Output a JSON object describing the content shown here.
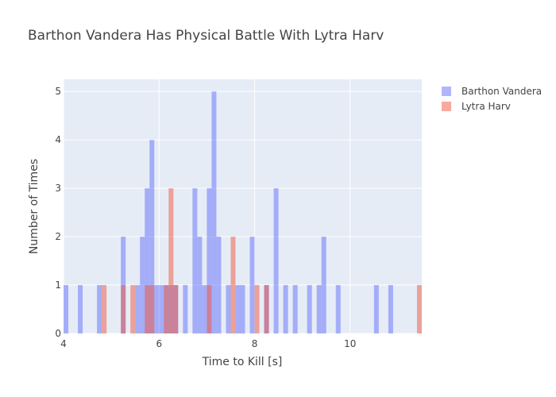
{
  "chart_data": {
    "type": "bar",
    "title": "Barthon Vandera Has Physical Battle With Lytra Harv",
    "xlabel": "Time to Kill [s]",
    "ylabel": "Number of Times",
    "xlim": [
      4,
      11.5
    ],
    "ylim": [
      0,
      5.25
    ],
    "bin_width": 0.1,
    "x_ticks": [
      4,
      6,
      8,
      10
    ],
    "y_ticks": [
      0,
      1,
      2,
      3,
      4,
      5
    ],
    "grid": true,
    "legend_position": "top-right",
    "barmode": "overlay",
    "series": [
      {
        "name": "Barthon Vandera",
        "color": "#636efa",
        "opacity": 0.5,
        "bins": [
          {
            "x": 4.0,
            "y": 1
          },
          {
            "x": 4.3,
            "y": 1
          },
          {
            "x": 4.7,
            "y": 1
          },
          {
            "x": 5.2,
            "y": 2
          },
          {
            "x": 5.5,
            "y": 1
          },
          {
            "x": 5.6,
            "y": 2
          },
          {
            "x": 5.7,
            "y": 3
          },
          {
            "x": 5.8,
            "y": 4
          },
          {
            "x": 5.9,
            "y": 1
          },
          {
            "x": 6.0,
            "y": 1
          },
          {
            "x": 6.1,
            "y": 1
          },
          {
            "x": 6.2,
            "y": 1
          },
          {
            "x": 6.3,
            "y": 1
          },
          {
            "x": 6.5,
            "y": 1
          },
          {
            "x": 6.7,
            "y": 3
          },
          {
            "x": 6.8,
            "y": 2
          },
          {
            "x": 6.9,
            "y": 1
          },
          {
            "x": 7.0,
            "y": 3
          },
          {
            "x": 7.1,
            "y": 5
          },
          {
            "x": 7.2,
            "y": 2
          },
          {
            "x": 7.4,
            "y": 1
          },
          {
            "x": 7.6,
            "y": 1
          },
          {
            "x": 7.7,
            "y": 1
          },
          {
            "x": 7.9,
            "y": 2
          },
          {
            "x": 8.2,
            "y": 1
          },
          {
            "x": 8.4,
            "y": 3
          },
          {
            "x": 8.6,
            "y": 1
          },
          {
            "x": 8.8,
            "y": 1
          },
          {
            "x": 9.1,
            "y": 1
          },
          {
            "x": 9.3,
            "y": 1
          },
          {
            "x": 9.4,
            "y": 2
          },
          {
            "x": 9.7,
            "y": 1
          },
          {
            "x": 10.5,
            "y": 1
          },
          {
            "x": 10.8,
            "y": 1
          }
        ]
      },
      {
        "name": "Lytra Harv",
        "color": "#ef553b",
        "opacity": 0.5,
        "bins": [
          {
            "x": 4.8,
            "y": 1
          },
          {
            "x": 5.2,
            "y": 1
          },
          {
            "x": 5.4,
            "y": 1
          },
          {
            "x": 5.7,
            "y": 1
          },
          {
            "x": 5.8,
            "y": 1
          },
          {
            "x": 6.1,
            "y": 1
          },
          {
            "x": 6.2,
            "y": 3
          },
          {
            "x": 6.3,
            "y": 1
          },
          {
            "x": 7.0,
            "y": 1
          },
          {
            "x": 7.5,
            "y": 2
          },
          {
            "x": 8.0,
            "y": 1
          },
          {
            "x": 8.2,
            "y": 1
          },
          {
            "x": 11.4,
            "y": 1
          }
        ]
      }
    ]
  }
}
